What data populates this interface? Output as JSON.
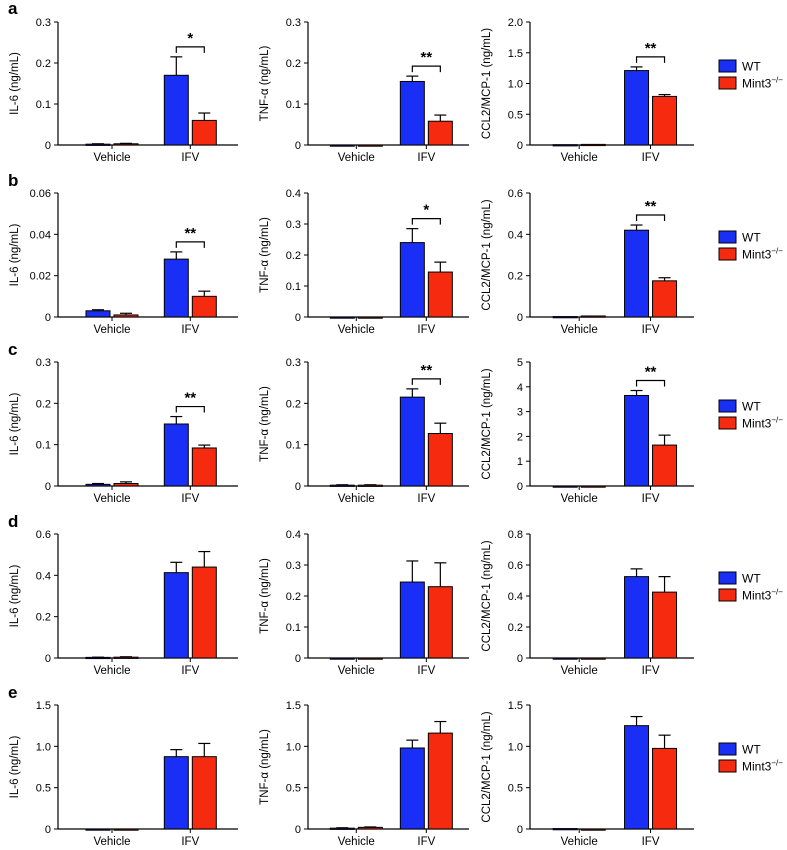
{
  "colors": {
    "wt": "#1a2ff5",
    "ko": "#f52a0f",
    "axis": "#000000"
  },
  "legend": [
    {
      "label": "WT",
      "color": "#1a2ff5"
    },
    {
      "label": "Mint3",
      "sup": "−/−",
      "color": "#f52a0f"
    }
  ],
  "chart_data": [
    {
      "row": "a",
      "panel_letter": "a",
      "type": "bar",
      "ylabel": "IL-6 (ng/mL)",
      "ylim": [
        0,
        0.3
      ],
      "ytick_labels": [
        "0",
        "0.1",
        "0.2",
        "0.3"
      ],
      "categories": [
        "Vehicle",
        "IFV"
      ],
      "series": [
        {
          "name": "WT",
          "values": [
            0.002,
            0.17
          ],
          "errors": [
            0.001,
            0.045
          ]
        },
        {
          "name": "Mint3−/−",
          "values": [
            0.003,
            0.06
          ],
          "errors": [
            0.001,
            0.018
          ]
        }
      ],
      "annotation": {
        "category": "IFV",
        "text": "*"
      }
    },
    {
      "row": "a",
      "type": "bar",
      "ylabel": "TNF-α (ng/mL)",
      "ylim": [
        0,
        0.3
      ],
      "ytick_labels": [
        "0",
        "0.1",
        "0.2",
        "0.3"
      ],
      "categories": [
        "Vehicle",
        "IFV"
      ],
      "series": [
        {
          "name": "WT",
          "values": [
            0.0,
            0.155
          ],
          "errors": [
            0.0,
            0.013
          ]
        },
        {
          "name": "Mint3−/−",
          "values": [
            0.0,
            0.058
          ],
          "errors": [
            0.0,
            0.015
          ]
        }
      ],
      "annotation": {
        "category": "IFV",
        "text": "**"
      }
    },
    {
      "row": "a",
      "type": "bar",
      "ylabel": "CCL2/MCP-1 (ng/mL)",
      "ylim": [
        0,
        2.0
      ],
      "ytick_labels": [
        "0",
        "0.5",
        "1.0",
        "1.5",
        "2.0"
      ],
      "categories": [
        "Vehicle",
        "IFV"
      ],
      "series": [
        {
          "name": "WT",
          "values": [
            0.005,
            1.21
          ],
          "errors": [
            0.0,
            0.06
          ]
        },
        {
          "name": "Mint3−/−",
          "values": [
            0.01,
            0.79
          ],
          "errors": [
            0.0,
            0.03
          ]
        }
      ],
      "annotation": {
        "category": "IFV",
        "text": "**"
      }
    },
    {
      "row": "b",
      "panel_letter": "b",
      "type": "bar",
      "ylabel": "IL-6 (ng/mL)",
      "ylim": [
        0,
        0.06
      ],
      "ytick_labels": [
        "0",
        "0.02",
        "0.04",
        "0.06"
      ],
      "categories": [
        "Vehicle",
        "IFV"
      ],
      "series": [
        {
          "name": "WT",
          "values": [
            0.003,
            0.028
          ],
          "errors": [
            0.0005,
            0.0035
          ]
        },
        {
          "name": "Mint3−/−",
          "values": [
            0.001,
            0.01
          ],
          "errors": [
            0.0008,
            0.0025
          ]
        }
      ],
      "annotation": {
        "category": "IFV",
        "text": "**"
      }
    },
    {
      "row": "b",
      "type": "bar",
      "ylabel": "TNF-α (ng/mL)",
      "ylim": [
        0,
        0.4
      ],
      "ytick_labels": [
        "0",
        "0.1",
        "0.2",
        "0.3",
        "0.4"
      ],
      "categories": [
        "Vehicle",
        "IFV"
      ],
      "series": [
        {
          "name": "WT",
          "values": [
            0.0,
            0.24
          ],
          "errors": [
            0.0,
            0.045
          ]
        },
        {
          "name": "Mint3−/−",
          "values": [
            0.0,
            0.145
          ],
          "errors": [
            0.0,
            0.032
          ]
        }
      ],
      "annotation": {
        "category": "IFV",
        "text": "*"
      }
    },
    {
      "row": "b",
      "type": "bar",
      "ylabel": "CCL2/MCP-1 (ng/mL)",
      "ylim": [
        0,
        0.6
      ],
      "ytick_labels": [
        "0",
        "0.2",
        "0.4",
        "0.6"
      ],
      "categories": [
        "Vehicle",
        "IFV"
      ],
      "series": [
        {
          "name": "WT",
          "values": [
            0.002,
            0.42
          ],
          "errors": [
            0.0,
            0.025
          ]
        },
        {
          "name": "Mint3−/−",
          "values": [
            0.005,
            0.175
          ],
          "errors": [
            0.0,
            0.015
          ]
        }
      ],
      "annotation": {
        "category": "IFV",
        "text": "**"
      }
    },
    {
      "row": "c",
      "panel_letter": "c",
      "type": "bar",
      "ylabel": "IL-6 (ng/mL)",
      "ylim": [
        0,
        0.3
      ],
      "ytick_labels": [
        "0",
        "0.1",
        "0.2",
        "0.3"
      ],
      "categories": [
        "Vehicle",
        "IFV"
      ],
      "series": [
        {
          "name": "WT",
          "values": [
            0.004,
            0.15
          ],
          "errors": [
            0.002,
            0.018
          ]
        },
        {
          "name": "Mint3−/−",
          "values": [
            0.006,
            0.092
          ],
          "errors": [
            0.004,
            0.007
          ]
        }
      ],
      "annotation": {
        "category": "IFV",
        "text": "**"
      }
    },
    {
      "row": "c",
      "type": "bar",
      "ylabel": "TNF-α (ng/mL)",
      "ylim": [
        0,
        0.3
      ],
      "ytick_labels": [
        "0",
        "0.1",
        "0.2",
        "0.3"
      ],
      "categories": [
        "Vehicle",
        "IFV"
      ],
      "series": [
        {
          "name": "WT",
          "values": [
            0.002,
            0.215
          ],
          "errors": [
            0.001,
            0.02
          ]
        },
        {
          "name": "Mint3−/−",
          "values": [
            0.002,
            0.127
          ],
          "errors": [
            0.001,
            0.025
          ]
        }
      ],
      "annotation": {
        "category": "IFV",
        "text": "**"
      }
    },
    {
      "row": "c",
      "type": "bar",
      "ylabel": "CCL2/MCP-1 (ng/mL)",
      "ylim": [
        0,
        5
      ],
      "ytick_labels": [
        "0",
        "1",
        "2",
        "3",
        "4",
        "5"
      ],
      "categories": [
        "Vehicle",
        "IFV"
      ],
      "series": [
        {
          "name": "WT",
          "values": [
            0.0,
            3.65
          ],
          "errors": [
            0.0,
            0.2
          ]
        },
        {
          "name": "Mint3−/−",
          "values": [
            0.0,
            1.65
          ],
          "errors": [
            0.0,
            0.4
          ]
        }
      ],
      "annotation": {
        "category": "IFV",
        "text": "**"
      }
    },
    {
      "row": "d",
      "panel_letter": "d",
      "type": "bar",
      "ylabel": "IL-6 (ng/mL)",
      "ylim": [
        0,
        0.6
      ],
      "ytick_labels": [
        "0",
        "0.2",
        "0.4",
        "0.6"
      ],
      "categories": [
        "Vehicle",
        "IFV"
      ],
      "series": [
        {
          "name": "WT",
          "values": [
            0.003,
            0.413
          ],
          "errors": [
            0.001,
            0.05
          ]
        },
        {
          "name": "Mint3−/−",
          "values": [
            0.004,
            0.44
          ],
          "errors": [
            0.002,
            0.075
          ]
        }
      ]
    },
    {
      "row": "d",
      "type": "bar",
      "ylabel": "TNF-α (ng/mL)",
      "ylim": [
        0,
        0.4
      ],
      "ytick_labels": [
        "0",
        "0.1",
        "0.2",
        "0.3",
        "0.4"
      ],
      "categories": [
        "Vehicle",
        "IFV"
      ],
      "series": [
        {
          "name": "WT",
          "values": [
            0.0,
            0.245
          ],
          "errors": [
            0.0,
            0.068
          ]
        },
        {
          "name": "Mint3−/−",
          "values": [
            0.0,
            0.23
          ],
          "errors": [
            0.0,
            0.077
          ]
        }
      ]
    },
    {
      "row": "d",
      "type": "bar",
      "ylabel": "CCL2/MCP-1 (ng/mL)",
      "ylim": [
        0,
        0.8
      ],
      "ytick_labels": [
        "0",
        "0.2",
        "0.4",
        "0.6",
        "0.8"
      ],
      "categories": [
        "Vehicle",
        "IFV"
      ],
      "series": [
        {
          "name": "WT",
          "values": [
            0.0,
            0.525
          ],
          "errors": [
            0.0,
            0.05
          ]
        },
        {
          "name": "Mint3−/−",
          "values": [
            0.0,
            0.425
          ],
          "errors": [
            0.0,
            0.1
          ]
        }
      ]
    },
    {
      "row": "e",
      "panel_letter": "e",
      "type": "bar",
      "ylabel": "IL-6 (ng/mL)",
      "ylim": [
        0,
        1.5
      ],
      "ytick_labels": [
        "0",
        "0.5",
        "1.0",
        "1.5"
      ],
      "categories": [
        "Vehicle",
        "IFV"
      ],
      "series": [
        {
          "name": "WT",
          "values": [
            0.0,
            0.875
          ],
          "errors": [
            0.0,
            0.085
          ]
        },
        {
          "name": "Mint3−/−",
          "values": [
            0.0,
            0.875
          ],
          "errors": [
            0.0,
            0.16
          ]
        }
      ]
    },
    {
      "row": "e",
      "type": "bar",
      "ylabel": "TNF-α (ng/mL)",
      "ylim": [
        0,
        1.5
      ],
      "ytick_labels": [
        "0",
        "0.5",
        "1.0",
        "1.5"
      ],
      "categories": [
        "Vehicle",
        "IFV"
      ],
      "series": [
        {
          "name": "WT",
          "values": [
            0.01,
            0.98
          ],
          "errors": [
            0.005,
            0.095
          ]
        },
        {
          "name": "Mint3−/−",
          "values": [
            0.02,
            1.16
          ],
          "errors": [
            0.005,
            0.14
          ]
        }
      ]
    },
    {
      "row": "e",
      "type": "bar",
      "ylabel": "CCL2/MCP-1 (ng/mL)",
      "ylim": [
        0,
        1.5
      ],
      "ytick_labels": [
        "0",
        "0.5",
        "1.0",
        "1.5"
      ],
      "categories": [
        "Vehicle",
        "IFV"
      ],
      "series": [
        {
          "name": "WT",
          "values": [
            0.005,
            1.25
          ],
          "errors": [
            0.0,
            0.11
          ]
        },
        {
          "name": "Mint3−/−",
          "values": [
            0.0,
            0.975
          ],
          "errors": [
            0.0,
            0.16
          ]
        }
      ]
    }
  ]
}
